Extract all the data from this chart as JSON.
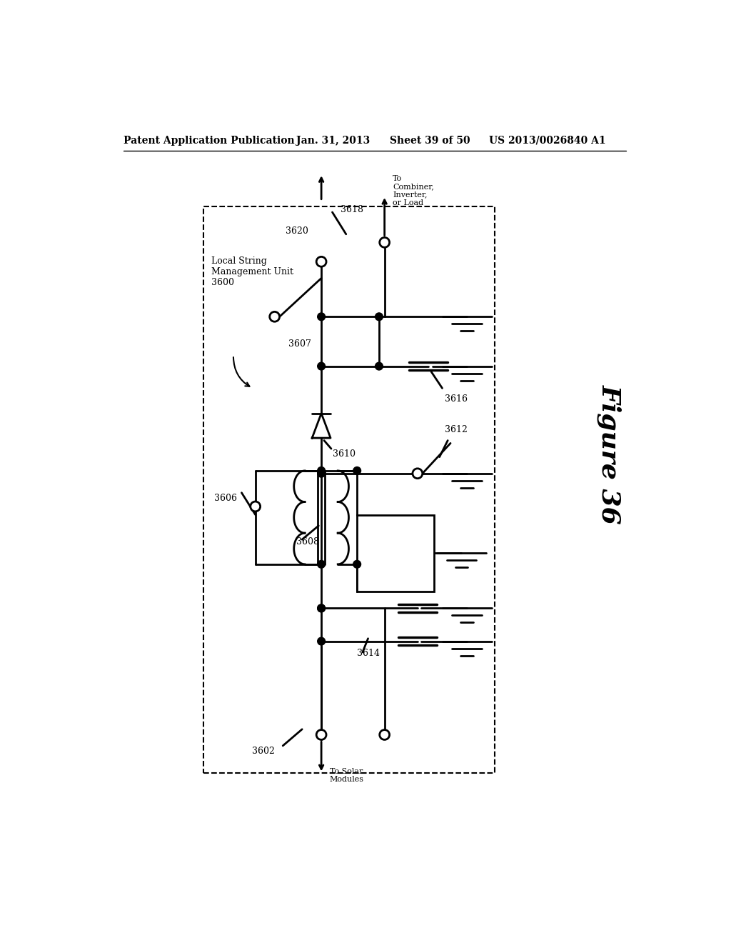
{
  "bg_color": "#ffffff",
  "header_left": "Patent Application Publication",
  "header_date": "Jan. 31, 2013",
  "header_sheet": "Sheet 39 of 50",
  "header_patent": "US 2013/0026840 A1",
  "figure_label": "Figure 36",
  "lsmu_label": "Local String\nManagement Unit\n3600"
}
